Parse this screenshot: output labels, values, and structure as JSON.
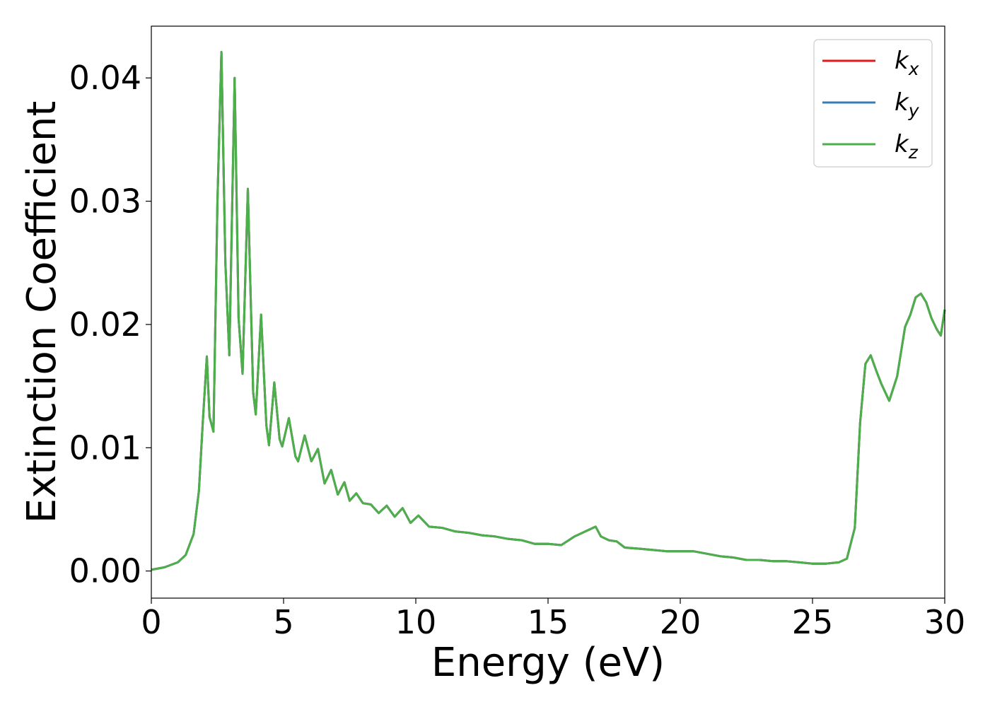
{
  "chart_data": {
    "type": "line",
    "title": "",
    "xlabel": "Energy (eV)",
    "ylabel": "Extinction Coefficient",
    "xlim": [
      0,
      30
    ],
    "ylim": [
      -0.0022,
      0.0442
    ],
    "xticks": [
      0,
      5,
      10,
      15,
      20,
      25,
      30
    ],
    "xtick_labels": [
      "0",
      "5",
      "10",
      "15",
      "20",
      "25",
      "30"
    ],
    "yticks": [
      0.0,
      0.01,
      0.02,
      0.03,
      0.04
    ],
    "ytick_labels": [
      "0.00",
      "0.01",
      "0.02",
      "0.03",
      "0.04"
    ],
    "grid": false,
    "legend_position": "top-right",
    "series": [
      {
        "name": "k",
        "subscript": "x",
        "color": "#e41a1c"
      },
      {
        "name": "k",
        "subscript": "y",
        "color": "#377eb8"
      },
      {
        "name": "k",
        "subscript": "z",
        "color": "#4daf4a"
      }
    ],
    "x": [
      0,
      0.5,
      1.0,
      1.3,
      1.6,
      1.8,
      1.95,
      2.1,
      2.2,
      2.35,
      2.5,
      2.65,
      2.8,
      2.95,
      3.15,
      3.3,
      3.45,
      3.65,
      3.85,
      3.95,
      4.15,
      4.35,
      4.45,
      4.65,
      4.85,
      4.95,
      5.2,
      5.45,
      5.55,
      5.8,
      6.05,
      6.3,
      6.55,
      6.8,
      7.05,
      7.3,
      7.5,
      7.75,
      8.0,
      8.3,
      8.6,
      8.9,
      9.2,
      9.5,
      9.8,
      10.1,
      10.5,
      11.0,
      11.5,
      12.0,
      12.5,
      13.0,
      13.5,
      14.0,
      14.5,
      15.0,
      15.5,
      16.0,
      16.5,
      16.8,
      17.0,
      17.3,
      17.6,
      17.9,
      18.5,
      19.0,
      19.5,
      20.0,
      20.5,
      21.0,
      21.5,
      22.0,
      22.5,
      23.0,
      23.5,
      24.0,
      24.5,
      25.0,
      25.5,
      26.0,
      26.3,
      26.6,
      26.8,
      27.0,
      27.2,
      27.4,
      27.6,
      27.9,
      28.2,
      28.5,
      28.7,
      28.9,
      29.1,
      29.3,
      29.5,
      29.7,
      29.85,
      30.0
    ],
    "values": [
      0.0001,
      0.0003,
      0.0007,
      0.0013,
      0.003,
      0.0065,
      0.0122,
      0.0174,
      0.0125,
      0.0113,
      0.03,
      0.0421,
      0.025,
      0.0175,
      0.04,
      0.0205,
      0.016,
      0.031,
      0.0145,
      0.0127,
      0.0208,
      0.0118,
      0.0102,
      0.0153,
      0.0107,
      0.0101,
      0.0124,
      0.0093,
      0.0089,
      0.011,
      0.0089,
      0.0099,
      0.0071,
      0.0082,
      0.0062,
      0.0072,
      0.0057,
      0.0063,
      0.0055,
      0.0054,
      0.0047,
      0.0053,
      0.0044,
      0.0051,
      0.0039,
      0.0045,
      0.0036,
      0.0035,
      0.0032,
      0.0031,
      0.0029,
      0.0028,
      0.0026,
      0.0025,
      0.0022,
      0.0022,
      0.0021,
      0.0028,
      0.0033,
      0.0036,
      0.0028,
      0.0025,
      0.0024,
      0.0019,
      0.0018,
      0.0017,
      0.0016,
      0.0016,
      0.0016,
      0.0014,
      0.0012,
      0.0011,
      0.0009,
      0.0009,
      0.0008,
      0.0008,
      0.0007,
      0.0006,
      0.0006,
      0.0007,
      0.001,
      0.0035,
      0.012,
      0.0168,
      0.0175,
      0.0163,
      0.0152,
      0.0138,
      0.0158,
      0.0198,
      0.0208,
      0.0222,
      0.0225,
      0.0218,
      0.0205,
      0.0196,
      0.0191,
      0.0212
    ]
  }
}
